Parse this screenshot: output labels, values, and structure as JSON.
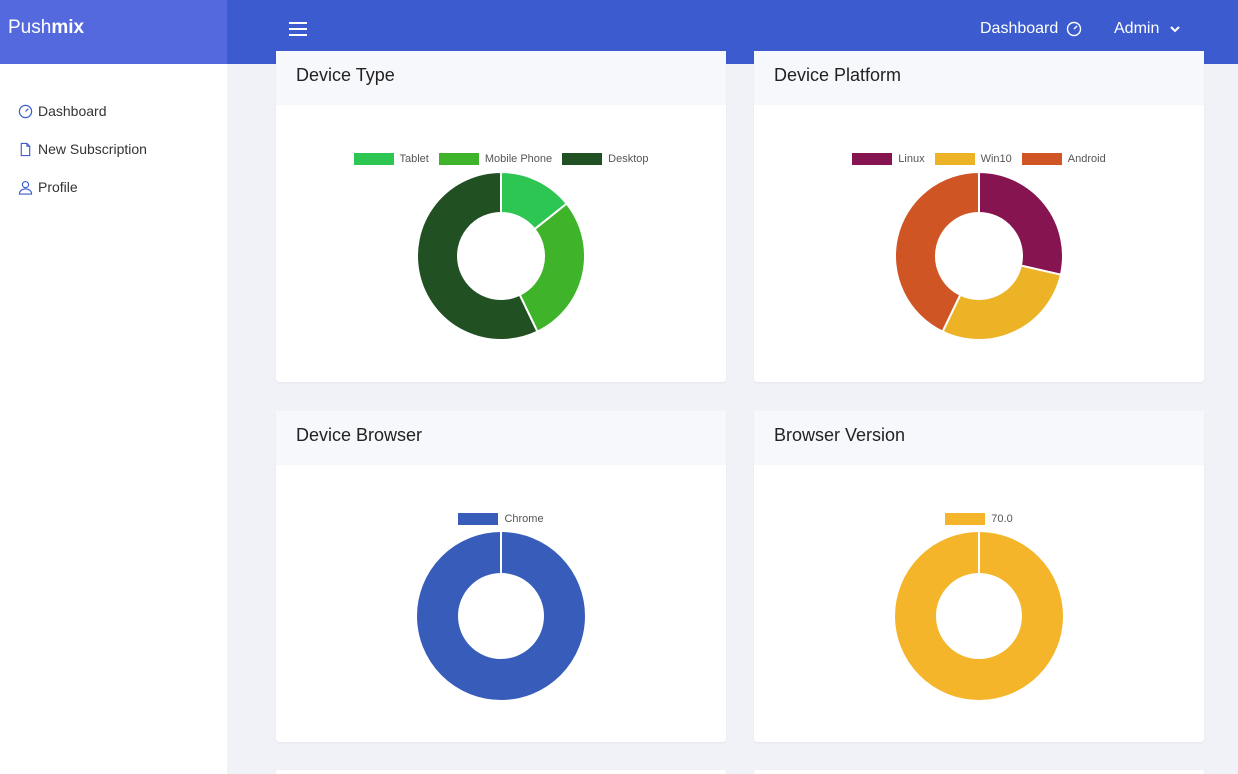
{
  "brand": {
    "prefix": "Push",
    "suffix": "mix"
  },
  "topbar": {
    "dashboard_label": "Dashboard",
    "user_label": "Admin"
  },
  "sidebar": {
    "items": [
      {
        "label": "Dashboard",
        "icon": "gauge-icon"
      },
      {
        "label": "New Subscription",
        "icon": "document-icon"
      },
      {
        "label": "Profile",
        "icon": "user-icon"
      }
    ]
  },
  "cards": [
    {
      "title": "Device Type"
    },
    {
      "title": "Device Platform"
    },
    {
      "title": "Device Browser"
    },
    {
      "title": "Browser Version"
    }
  ],
  "chart_data": [
    {
      "type": "pie",
      "title": "Device Type",
      "labels": [
        "Tablet",
        "Mobile Phone",
        "Desktop"
      ],
      "values": [
        1,
        2,
        4
      ],
      "colors": [
        "#2dc653",
        "#3fb42b",
        "#215122"
      ],
      "legend": "top"
    },
    {
      "type": "pie",
      "title": "Device Platform",
      "labels": [
        "Linux",
        "Win10",
        "Android"
      ],
      "values": [
        2,
        2,
        3
      ],
      "colors": [
        "#861450",
        "#edb327",
        "#cf5624"
      ],
      "legend": "top"
    },
    {
      "type": "pie",
      "title": "Device Browser",
      "labels": [
        "Chrome"
      ],
      "values": [
        1
      ],
      "colors": [
        "#385cba"
      ],
      "legend": "top"
    },
    {
      "type": "pie",
      "title": "Browser Version",
      "labels": [
        "70.0"
      ],
      "values": [
        1
      ],
      "colors": [
        "#f5b52a"
      ],
      "legend": "top"
    }
  ]
}
